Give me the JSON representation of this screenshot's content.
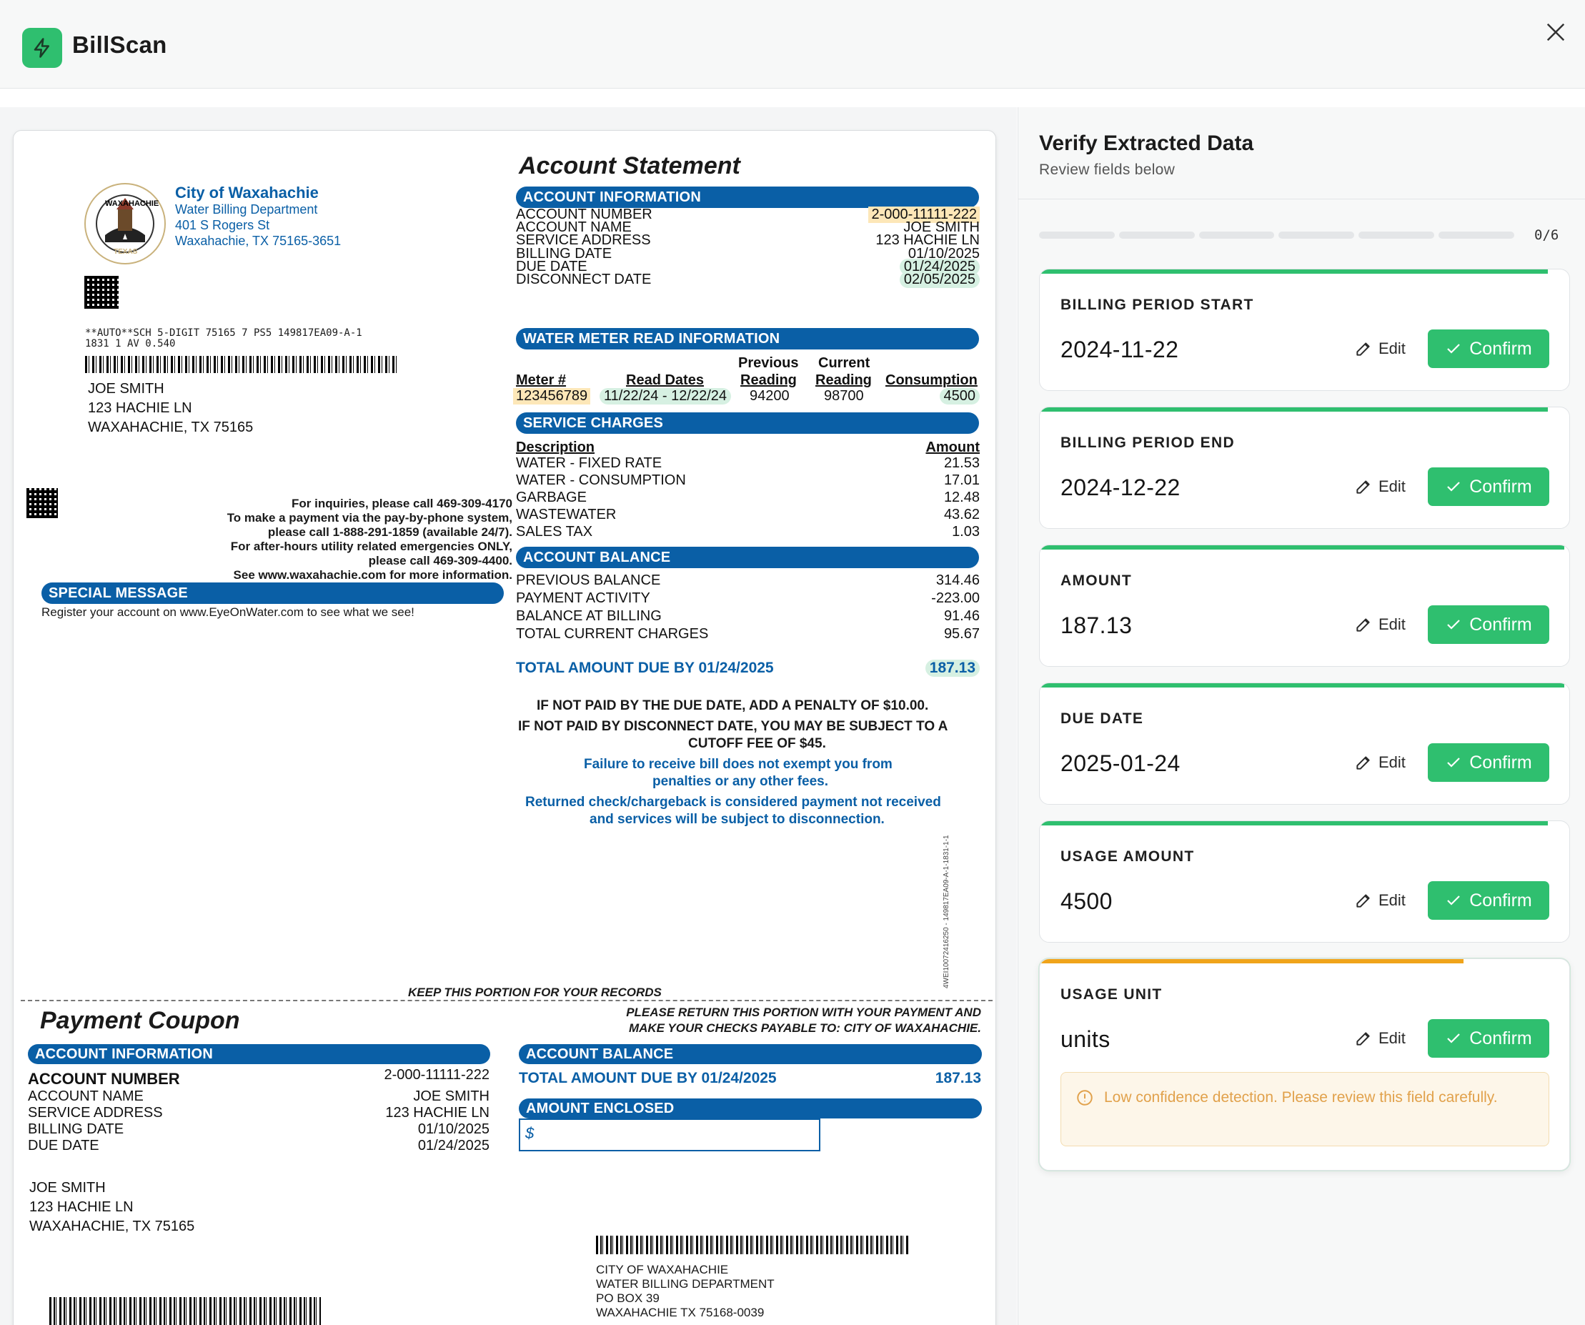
{
  "app": {
    "name": "BillScan"
  },
  "bill": {
    "city": "City of Waxahachie",
    "dept": "Water Billing Department",
    "street": "401 S Rogers St",
    "citystate": "Waxahachie, TX 75165-3651",
    "statement_title": "Account Statement",
    "sec_account_info": "ACCOUNT INFORMATION",
    "account_rows": [
      {
        "label": "ACCOUNT NUMBER",
        "value": "2-000-11111-222"
      },
      {
        "label": "ACCOUNT NAME",
        "value": "JOE SMITH"
      },
      {
        "label": "SERVICE ADDRESS",
        "value": "123 HACHIE LN"
      },
      {
        "label": "BILLING DATE",
        "value": "01/10/2025"
      },
      {
        "label": "DUE DATE",
        "value": "01/24/2025"
      },
      {
        "label": "DISCONNECT DATE",
        "value": "02/05/2025"
      }
    ],
    "sec_meter": "WATER METER READ INFORMATION",
    "meter_headers": {
      "meter": "Meter #",
      "read_dates": "Read Dates",
      "prev_top": "Previous",
      "prev": "Reading",
      "curr_top": "Current",
      "curr": "Reading",
      "consumption": "Consumption"
    },
    "meter_row": {
      "meter": "123456789",
      "read_dates": "11/22/24 - 12/22/24",
      "prev": "94200",
      "curr": "98700",
      "consumption": "4500"
    },
    "sec_charges": "SERVICE CHARGES",
    "charges_headers": {
      "desc": "Description",
      "amount": "Amount"
    },
    "charges": [
      {
        "label": "WATER - FIXED RATE",
        "value": "21.53"
      },
      {
        "label": "WATER - CONSUMPTION",
        "value": "17.01"
      },
      {
        "label": "GARBAGE",
        "value": "12.48"
      },
      {
        "label": "WASTEWATER",
        "value": "43.62"
      },
      {
        "label": "SALES TAX",
        "value": "1.03"
      }
    ],
    "sec_balance": "ACCOUNT BALANCE",
    "balance": [
      {
        "label": "PREVIOUS BALANCE",
        "value": "314.46"
      },
      {
        "label": "PAYMENT ACTIVITY",
        "value": "-223.00"
      },
      {
        "label": "BALANCE AT BILLING",
        "value": "91.46"
      },
      {
        "label": "TOTAL CURRENT CHARGES",
        "value": "95.67"
      }
    ],
    "total_label": "TOTAL AMOUNT DUE BY 01/24/2025",
    "total_value": "187.13",
    "penalty1": "IF NOT PAID BY THE DUE DATE, ADD A PENALTY OF $10.00.",
    "penalty2": "IF NOT PAID BY DISCONNECT DATE, YOU MAY BE SUBJECT TO A",
    "penalty3": "CUTOFF FEE OF $45.",
    "fail1": "Failure to receive bill does not exempt you from",
    "fail2": "penalties or any other fees.",
    "ret1": "Returned check/chargeback is considered payment not received",
    "ret2": "and services will be subject to disconnection.",
    "mail_code1": "**AUTO**SCH 5-DIGIT 75165 7 PS5 149817EA09-A-1",
    "mail_code2": "1831 1 AV 0.540",
    "cust_name": "JOE SMITH",
    "cust_street": "123 HACHIE LN",
    "cust_city": "WAXAHACHIE, TX 75165",
    "inq1": "For inquiries, please call 469-309-4170",
    "inq2": "To make a payment via the pay-by-phone system,",
    "inq3": "please call 1-888-291-1859 (available 24/7).",
    "inq4": "For after-hours utility related emergencies ONLY,",
    "inq5": "please call 469-309-4400.",
    "inq6": "See www.waxahachie.com for more information.",
    "special_title": "SPECIAL MESSAGE",
    "special_text": "Register your account on www.EyeOnWater.com to see what we see!",
    "vertical_code": "4WEI10072416250 - 149817EA09-A-1-1831-1-1",
    "keep": "KEEP THIS PORTION FOR YOUR RECORDS",
    "coupon_title": "Payment Coupon",
    "return1": "PLEASE RETURN THIS PORTION WITH YOUR PAYMENT AND",
    "return2": "MAKE YOUR CHECKS PAYABLE TO: CITY OF WAXAHACHIE.",
    "coupon_rows": [
      {
        "label": "ACCOUNT NUMBER",
        "value": "2-000-11111-222"
      },
      {
        "label": "ACCOUNT NAME",
        "value": "JOE SMITH"
      },
      {
        "label": "SERVICE ADDRESS",
        "value": "123 HACHIE LN"
      },
      {
        "label": "BILLING DATE",
        "value": "01/10/2025"
      },
      {
        "label": "DUE DATE",
        "value": "01/24/2025"
      }
    ],
    "amount_enclosed": "AMOUNT ENCLOSED",
    "dollar": "$",
    "remit1": "CITY OF WAXAHACHIE",
    "remit2": "WATER BILLING DEPARTMENT",
    "remit3": "PO BOX 39",
    "remit4": "WAXAHACHIE TX  75168-0039",
    "seal_text": "WAXAHACHIE",
    "seal_sub": "TEXAS"
  },
  "panel": {
    "title": "Verify Extracted Data",
    "subtitle": "Review fields below",
    "progress": "0/6",
    "edit_label": "Edit",
    "confirm_label": "Confirm",
    "fields": [
      {
        "label": "BILLING PERIOD START",
        "value": "2024-11-22",
        "confidence": 0.96
      },
      {
        "label": "BILLING PERIOD END",
        "value": "2024-12-22",
        "confidence": 0.96
      },
      {
        "label": "AMOUNT",
        "value": "187.13",
        "confidence": 0.99
      },
      {
        "label": "DUE DATE",
        "value": "2025-01-24",
        "confidence": 0.99
      },
      {
        "label": "USAGE AMOUNT",
        "value": "4500",
        "confidence": 0.96
      },
      {
        "label": "USAGE UNIT",
        "value": "units",
        "confidence": 0.8
      }
    ],
    "warning": "Low confidence detection. Please review this field carefully."
  },
  "colors": {
    "accent": "#2fbf6f",
    "warn": "#f0a41a",
    "doc_blue": "#0a5fa6"
  }
}
